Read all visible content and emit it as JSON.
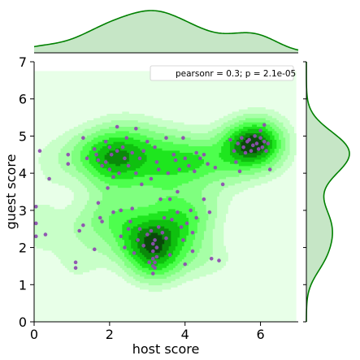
{
  "chart_data": {
    "type": "scatter",
    "subtype": "joint-plot-kde",
    "xlabel": "host score",
    "ylabel": "guest score",
    "xlim": [
      0,
      7
    ],
    "ylim": [
      0,
      7
    ],
    "xticks": [
      "0",
      "2",
      "4",
      "6"
    ],
    "yticks": [
      "0",
      "1",
      "2",
      "3",
      "4",
      "5",
      "6",
      "7"
    ],
    "legend_text": "pearsonr = 0.3; p = 2.1e-05",
    "legend_position": "top-right",
    "grid": false,
    "colors": {
      "scatter": "#8e4fb0",
      "kde": "#00cc00",
      "marginal_line": "#008000",
      "marginal_fill": "#c6e6c6",
      "density_background": "#e8ffe8"
    },
    "kde_peaks": [
      {
        "x": 3.2,
        "y": 1.8
      },
      {
        "x": 2.2,
        "y": 4.5
      },
      {
        "x": 5.7,
        "y": 4.8
      }
    ],
    "points": [
      [
        0.05,
        3.1
      ],
      [
        0.05,
        2.65
      ],
      [
        0.05,
        2.3
      ],
      [
        0.15,
        4.6
      ],
      [
        0.3,
        2.35
      ],
      [
        0.4,
        3.85
      ],
      [
        0.9,
        4.5
      ],
      [
        0.9,
        4.25
      ],
      [
        1.1,
        1.6
      ],
      [
        1.1,
        1.45
      ],
      [
        1.2,
        2.45
      ],
      [
        1.3,
        4.95
      ],
      [
        1.3,
        2.6
      ],
      [
        1.4,
        4.4
      ],
      [
        1.6,
        4.65
      ],
      [
        1.6,
        1.95
      ],
      [
        1.65,
        4.5
      ],
      [
        1.7,
        4.35
      ],
      [
        1.7,
        3.2
      ],
      [
        1.75,
        2.8
      ],
      [
        1.8,
        4.2
      ],
      [
        1.8,
        2.7
      ],
      [
        1.9,
        4.85
      ],
      [
        1.9,
        4.3
      ],
      [
        1.95,
        3.6
      ],
      [
        2.0,
        4.7
      ],
      [
        2.0,
        4.1
      ],
      [
        2.05,
        4.5
      ],
      [
        2.1,
        3.9
      ],
      [
        2.1,
        2.95
      ],
      [
        2.2,
        5.25
      ],
      [
        2.2,
        4.6
      ],
      [
        2.25,
        4.0
      ],
      [
        2.3,
        3.0
      ],
      [
        2.3,
        2.3
      ],
      [
        2.35,
        4.7
      ],
      [
        2.4,
        4.4
      ],
      [
        2.4,
        2.0
      ],
      [
        2.45,
        4.95
      ],
      [
        2.5,
        4.2
      ],
      [
        2.5,
        2.5
      ],
      [
        2.55,
        2.7
      ],
      [
        2.6,
        3.05
      ],
      [
        2.6,
        4.55
      ],
      [
        2.65,
        1.85
      ],
      [
        2.7,
        5.2
      ],
      [
        2.7,
        4.0
      ],
      [
        2.75,
        2.2
      ],
      [
        2.8,
        4.4
      ],
      [
        2.8,
        2.5
      ],
      [
        2.85,
        3.7
      ],
      [
        2.9,
        4.6
      ],
      [
        2.9,
        2.05
      ],
      [
        3.0,
        4.85
      ],
      [
        3.0,
        2.35
      ],
      [
        3.05,
        1.6
      ],
      [
        3.1,
        3.85
      ],
      [
        3.1,
        2.45
      ],
      [
        3.15,
        1.3
      ],
      [
        3.15,
        1.5
      ],
      [
        3.15,
        1.7
      ],
      [
        3.15,
        1.9
      ],
      [
        3.15,
        2.1
      ],
      [
        3.2,
        4.7
      ],
      [
        3.2,
        2.2
      ],
      [
        3.2,
        1.45
      ],
      [
        3.2,
        1.6
      ],
      [
        3.25,
        4.3
      ],
      [
        3.25,
        1.75
      ],
      [
        3.25,
        2.0
      ],
      [
        3.3,
        4.1
      ],
      [
        3.3,
        2.55
      ],
      [
        3.35,
        3.3
      ],
      [
        3.4,
        2.4
      ],
      [
        3.45,
        2.8
      ],
      [
        3.5,
        4.95
      ],
      [
        3.5,
        2.25
      ],
      [
        3.55,
        4.0
      ],
      [
        3.6,
        1.8
      ],
      [
        3.6,
        3.3
      ],
      [
        3.65,
        2.75
      ],
      [
        3.7,
        4.5
      ],
      [
        3.75,
        4.35
      ],
      [
        3.8,
        3.5
      ],
      [
        3.8,
        2.95
      ],
      [
        3.85,
        4.1
      ],
      [
        3.9,
        2.55
      ],
      [
        3.95,
        4.95
      ],
      [
        3.95,
        2.2
      ],
      [
        4.0,
        4.4
      ],
      [
        4.0,
        1.55
      ],
      [
        4.05,
        2.65
      ],
      [
        4.1,
        4.2
      ],
      [
        4.15,
        3.0
      ],
      [
        4.2,
        1.9
      ],
      [
        4.2,
        2.4
      ],
      [
        4.25,
        4.05
      ],
      [
        4.3,
        4.55
      ],
      [
        4.3,
        2.8
      ],
      [
        4.4,
        4.4
      ],
      [
        4.5,
        4.5
      ],
      [
        4.5,
        3.3
      ],
      [
        4.6,
        4.25
      ],
      [
        4.65,
        2.95
      ],
      [
        4.7,
        1.7
      ],
      [
        4.8,
        4.15
      ],
      [
        4.9,
        1.65
      ],
      [
        5.0,
        3.7
      ],
      [
        5.2,
        4.9
      ],
      [
        5.3,
        4.6
      ],
      [
        5.35,
        4.3
      ],
      [
        5.4,
        4.8
      ],
      [
        5.45,
        4.05
      ],
      [
        5.5,
        4.95
      ],
      [
        5.55,
        4.7
      ],
      [
        5.6,
        4.55
      ],
      [
        5.65,
        4.85
      ],
      [
        5.7,
        4.9
      ],
      [
        5.75,
        4.6
      ],
      [
        5.8,
        4.75
      ],
      [
        5.85,
        5.0
      ],
      [
        5.9,
        4.8
      ],
      [
        5.95,
        4.65
      ],
      [
        6.0,
        5.15
      ],
      [
        6.0,
        4.95
      ],
      [
        6.05,
        4.7
      ],
      [
        6.1,
        5.3
      ],
      [
        6.1,
        4.85
      ],
      [
        6.15,
        4.6
      ],
      [
        6.2,
        4.8
      ],
      [
        6.25,
        4.1
      ]
    ]
  }
}
